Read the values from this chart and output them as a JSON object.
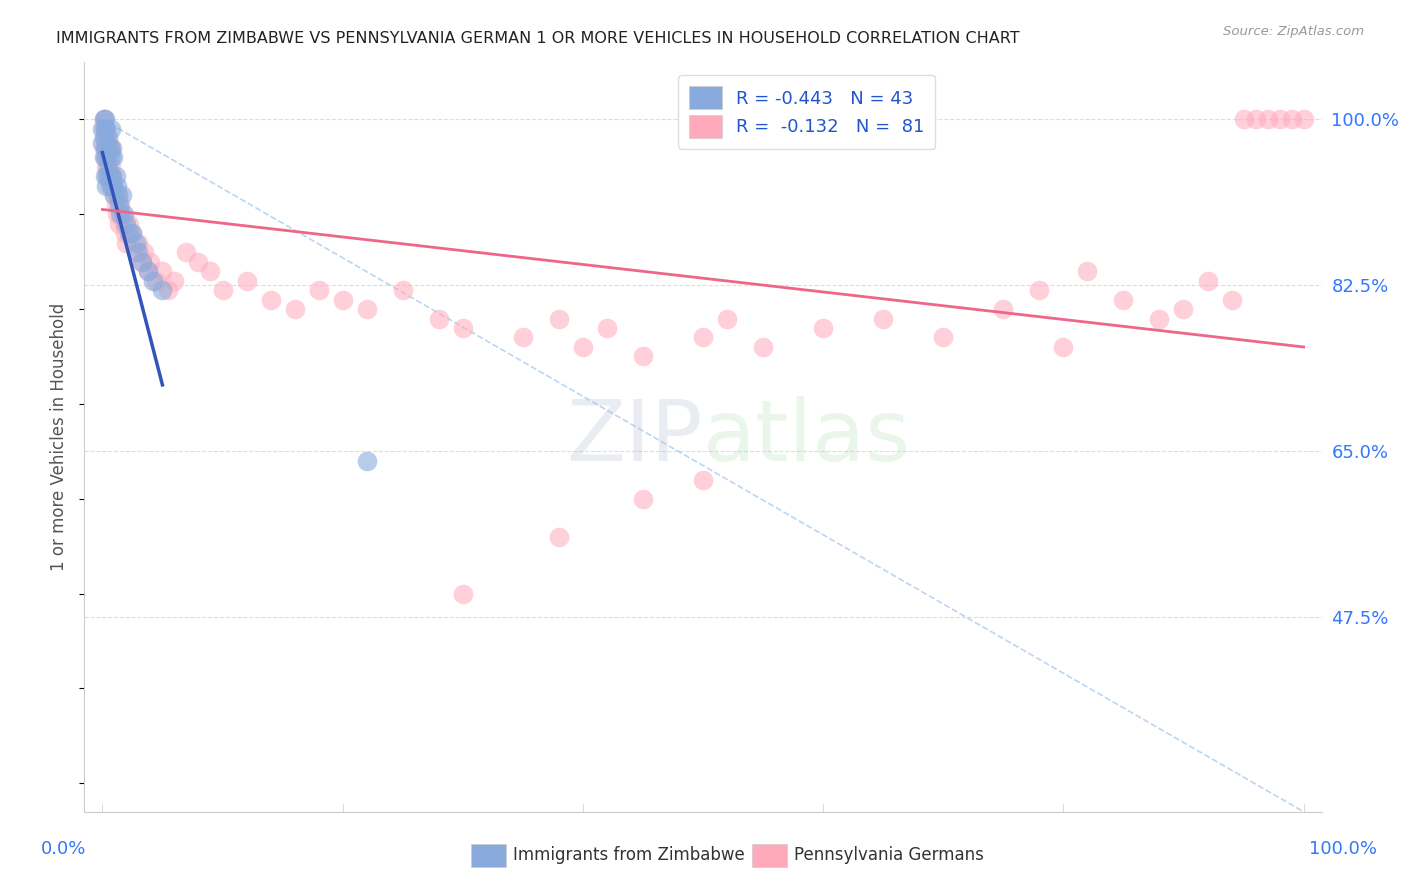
{
  "title": "IMMIGRANTS FROM ZIMBABWE VS PENNSYLVANIA GERMAN 1 OR MORE VEHICLES IN HOUSEHOLD CORRELATION CHART",
  "source": "Source: ZipAtlas.com",
  "ylabel": "1 or more Vehicles in Household",
  "color_blue": "#88AADD",
  "color_pink": "#FFAABB",
  "line_blue": "#3355BB",
  "line_pink": "#EE6688",
  "line_dash": "#AACCEE",
  "background": "#FFFFFF",
  "grid_color": "#DDDDDD",
  "watermark_zip": "ZIP",
  "watermark_atlas": "atlas",
  "blue_x": [
    0.0,
    0.0,
    0.001,
    0.001,
    0.001,
    0.002,
    0.002,
    0.002,
    0.002,
    0.003,
    0.003,
    0.003,
    0.004,
    0.004,
    0.005,
    0.005,
    0.006,
    0.006,
    0.007,
    0.007,
    0.007,
    0.008,
    0.008,
    0.009,
    0.009,
    0.01,
    0.011,
    0.012,
    0.013,
    0.014,
    0.015,
    0.016,
    0.018,
    0.02,
    0.022,
    0.025,
    0.028,
    0.03,
    0.033,
    0.038,
    0.042,
    0.05,
    0.22
  ],
  "blue_y": [
    0.975,
    0.99,
    0.96,
    0.98,
    1.0,
    0.94,
    0.97,
    0.99,
    1.0,
    0.93,
    0.96,
    0.99,
    0.94,
    0.97,
    0.95,
    0.98,
    0.94,
    0.97,
    0.93,
    0.96,
    0.99,
    0.94,
    0.97,
    0.93,
    0.96,
    0.92,
    0.94,
    0.93,
    0.92,
    0.91,
    0.9,
    0.92,
    0.9,
    0.89,
    0.88,
    0.88,
    0.87,
    0.86,
    0.85,
    0.84,
    0.83,
    0.82,
    0.64
  ],
  "blue_trend_x": [
    0.0,
    0.05
  ],
  "blue_trend_y": [
    0.965,
    0.72
  ],
  "pink_x": [
    0.001,
    0.001,
    0.001,
    0.002,
    0.002,
    0.003,
    0.003,
    0.004,
    0.004,
    0.005,
    0.005,
    0.006,
    0.007,
    0.007,
    0.008,
    0.009,
    0.01,
    0.011,
    0.012,
    0.013,
    0.014,
    0.015,
    0.016,
    0.018,
    0.019,
    0.02,
    0.022,
    0.025,
    0.028,
    0.03,
    0.033,
    0.035,
    0.038,
    0.04,
    0.045,
    0.05,
    0.055,
    0.06,
    0.07,
    0.08,
    0.09,
    0.1,
    0.12,
    0.14,
    0.16,
    0.18,
    0.2,
    0.22,
    0.25,
    0.28,
    0.3,
    0.35,
    0.38,
    0.4,
    0.42,
    0.45,
    0.5,
    0.52,
    0.55,
    0.6,
    0.65,
    0.7,
    0.75,
    0.78,
    0.8,
    0.82,
    0.85,
    0.88,
    0.9,
    0.92,
    0.94,
    0.95,
    0.96,
    0.97,
    0.98,
    0.99,
    1.0,
    0.5,
    0.45,
    0.38,
    0.3
  ],
  "pink_y": [
    0.97,
    0.99,
    1.0,
    0.96,
    0.98,
    0.95,
    0.97,
    0.96,
    0.98,
    0.94,
    0.96,
    0.93,
    0.95,
    0.97,
    0.94,
    0.93,
    0.92,
    0.91,
    0.9,
    0.92,
    0.89,
    0.91,
    0.9,
    0.89,
    0.88,
    0.87,
    0.89,
    0.88,
    0.86,
    0.87,
    0.85,
    0.86,
    0.84,
    0.85,
    0.83,
    0.84,
    0.82,
    0.83,
    0.86,
    0.85,
    0.84,
    0.82,
    0.83,
    0.81,
    0.8,
    0.82,
    0.81,
    0.8,
    0.82,
    0.79,
    0.78,
    0.77,
    0.79,
    0.76,
    0.78,
    0.75,
    0.77,
    0.79,
    0.76,
    0.78,
    0.79,
    0.77,
    0.8,
    0.82,
    0.76,
    0.84,
    0.81,
    0.79,
    0.8,
    0.83,
    0.81,
    1.0,
    1.0,
    1.0,
    1.0,
    1.0,
    1.0,
    0.62,
    0.6,
    0.56,
    0.5
  ],
  "pink_trend_x": [
    0.0,
    1.0
  ],
  "pink_trend_y": [
    0.905,
    0.76
  ],
  "ytick_vals": [
    0.475,
    0.65,
    0.825,
    1.0
  ],
  "ytick_labels": [
    "47.5%",
    "65.0%",
    "82.5%",
    "100.0%"
  ],
  "ymin": 0.27,
  "ymax": 1.06,
  "xmin": -0.015,
  "xmax": 1.015
}
